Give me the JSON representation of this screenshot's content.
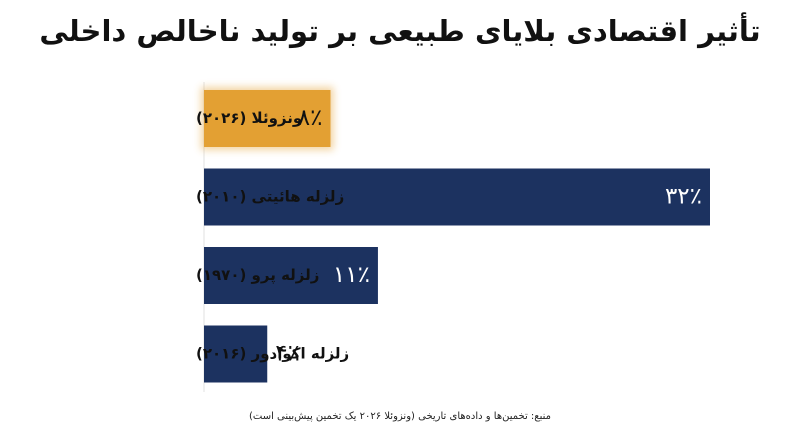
{
  "chart_data": {
    "type": "bar",
    "orientation": "horizontal",
    "title": "تأثیر اقتصادی بلایای طبیعی بر تولید ناخالص داخلی",
    "categories": [
      "ونزوئلا (۲۰۲۶)",
      "زلزله هائیتی (۲۰۱۰)",
      "زلزله پرو (۱۹۷۰)",
      "زلزله اکوادور (۲۰۱۶)"
    ],
    "values": [
      8,
      32,
      11,
      4
    ],
    "value_labels": [
      "۸٪",
      "۳۲٪",
      "۱۱٪",
      "۴٪"
    ],
    "bar_colors": [
      "#E3A033",
      "#1C3260",
      "#1C3260",
      "#1C3260"
    ],
    "highlight_index": 0,
    "xlim": [
      0,
      32
    ],
    "grid": false,
    "legend": false,
    "source": "منبع: تخمین‌ها و داده‌های تاریخی (ونزوئلا ۲۰۲۶ یک تخمین پیش‌بینی است)"
  }
}
